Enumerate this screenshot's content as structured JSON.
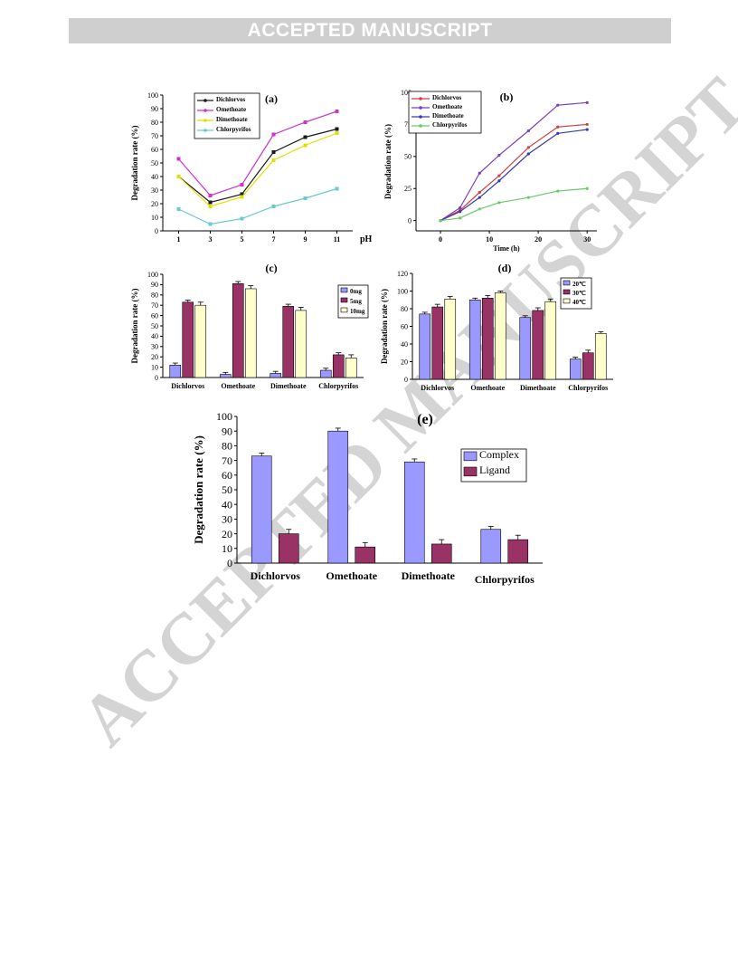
{
  "banner": {
    "label": "ACCEPTED MANUSCRIPT"
  },
  "watermark": {
    "text": "ACCEPTED MANUSCRIPT",
    "color": "#d4d4d4"
  },
  "chart_data": [
    {
      "id": "a",
      "panel_label": "(a)",
      "type": "line",
      "x": [
        1,
        3,
        5,
        7,
        9,
        11
      ],
      "x_ticks": [
        "1",
        "3",
        "5",
        "7",
        "9",
        "11"
      ],
      "xlabel": "pH",
      "ylabel": "Degradation rate (%)",
      "ylim": [
        0,
        100
      ],
      "y_ticks": [
        0,
        10,
        20,
        30,
        40,
        50,
        60,
        70,
        80,
        90,
        100
      ],
      "legend_position": "top-left",
      "series": [
        {
          "name": "Dichlorvos",
          "color": "#1a1a1a",
          "values": [
            40,
            21,
            27,
            58,
            69,
            75
          ]
        },
        {
          "name": "Omethoate",
          "color": "#cc33cc",
          "values": [
            53,
            26,
            34,
            71,
            80,
            88
          ]
        },
        {
          "name": "Dimethoate",
          "color": "#e0e000",
          "values": [
            40,
            18,
            25,
            52,
            63,
            72
          ]
        },
        {
          "name": "Chlorpyrifos",
          "color": "#66cccc",
          "values": [
            16,
            5,
            9,
            18,
            24,
            31
          ]
        }
      ]
    },
    {
      "id": "b",
      "panel_label": "(b)",
      "type": "line",
      "x": [
        0,
        4,
        8,
        12,
        18,
        24,
        30
      ],
      "x_ticks": [
        "0",
        "10",
        "20",
        "30"
      ],
      "xlim": [
        -5,
        32
      ],
      "xlabel": "Time (h)",
      "ylabel": "Degradation rate (%)",
      "ylim": [
        -8,
        100
      ],
      "y_ticks": [
        "0",
        "25",
        "50",
        "75",
        "100"
      ],
      "legend_position": "top-left",
      "series": [
        {
          "name": "Dichlorvos",
          "color": "#d04040",
          "values": [
            0,
            8,
            22,
            35,
            57,
            73,
            75
          ]
        },
        {
          "name": "Omethoate",
          "color": "#7a3fbf",
          "values": [
            0,
            10,
            37,
            51,
            70,
            90,
            92
          ]
        },
        {
          "name": "Dimethoate",
          "color": "#3a3ab0",
          "values": [
            0,
            7,
            18,
            31,
            52,
            68,
            71
          ]
        },
        {
          "name": "Chlorpyrifos",
          "color": "#66cc66",
          "values": [
            0,
            2,
            9,
            14,
            18,
            23,
            25
          ]
        }
      ]
    },
    {
      "id": "c",
      "panel_label": "(c)",
      "type": "bar",
      "categories": [
        "Dichlorvos",
        "Omethoate",
        "Dimethoate",
        "Chlorpyrifos"
      ],
      "ylabel": "Degradation rate (%)",
      "ylim": [
        0,
        100
      ],
      "y_ticks": [
        0,
        10,
        20,
        30,
        40,
        50,
        60,
        70,
        80,
        90,
        100
      ],
      "legend_position": "top-right",
      "series": [
        {
          "name": "0mg",
          "color": "#9999ff",
          "values": [
            12,
            3,
            4,
            7
          ],
          "errors": [
            2,
            2,
            2,
            2
          ]
        },
        {
          "name": "5mg",
          "color": "#993366",
          "values": [
            73,
            91,
            69,
            22
          ],
          "errors": [
            2,
            2,
            2,
            2
          ]
        },
        {
          "name": "10mg",
          "color": "#ffffcc",
          "values": [
            70,
            86,
            65,
            19
          ],
          "errors": [
            3,
            3,
            3,
            3
          ]
        }
      ]
    },
    {
      "id": "d",
      "panel_label": "(d)",
      "type": "bar",
      "categories": [
        "Dichlorvos",
        "Omethoate",
        "Dimethoate",
        "Chlorpyrifos"
      ],
      "ylabel": "Degradation rate (%)",
      "ylim": [
        0,
        120
      ],
      "y_ticks": [
        0,
        20,
        40,
        60,
        80,
        100,
        120
      ],
      "legend_position": "top-right",
      "series": [
        {
          "name": "20℃",
          "color": "#9999ff",
          "values": [
            74,
            90,
            70,
            23
          ],
          "errors": [
            2,
            2,
            2,
            2
          ]
        },
        {
          "name": "30℃",
          "color": "#993366",
          "values": [
            82,
            92,
            78,
            30
          ],
          "errors": [
            3,
            3,
            3,
            3
          ]
        },
        {
          "name": "40℃",
          "color": "#ffffcc",
          "values": [
            91,
            98,
            88,
            52
          ],
          "errors": [
            3,
            2,
            3,
            2
          ]
        }
      ]
    },
    {
      "id": "e",
      "panel_label": "(e)",
      "type": "bar",
      "categories": [
        "Dichlorvos",
        "Omethoate",
        "Dimethoate",
        "Chlorpyrifos"
      ],
      "ylabel": "Degradation rate (%)",
      "ylim": [
        0,
        100
      ],
      "y_ticks": [
        0,
        10,
        20,
        30,
        40,
        50,
        60,
        70,
        80,
        90,
        100
      ],
      "legend_position": "right",
      "series": [
        {
          "name": "Complex",
          "color": "#9999ff",
          "values": [
            73,
            90,
            69,
            23
          ],
          "errors": [
            2,
            2,
            2,
            2
          ]
        },
        {
          "name": "Ligand",
          "color": "#993366",
          "values": [
            20,
            11,
            13,
            16
          ],
          "errors": [
            3,
            3,
            3,
            3
          ]
        }
      ]
    }
  ]
}
